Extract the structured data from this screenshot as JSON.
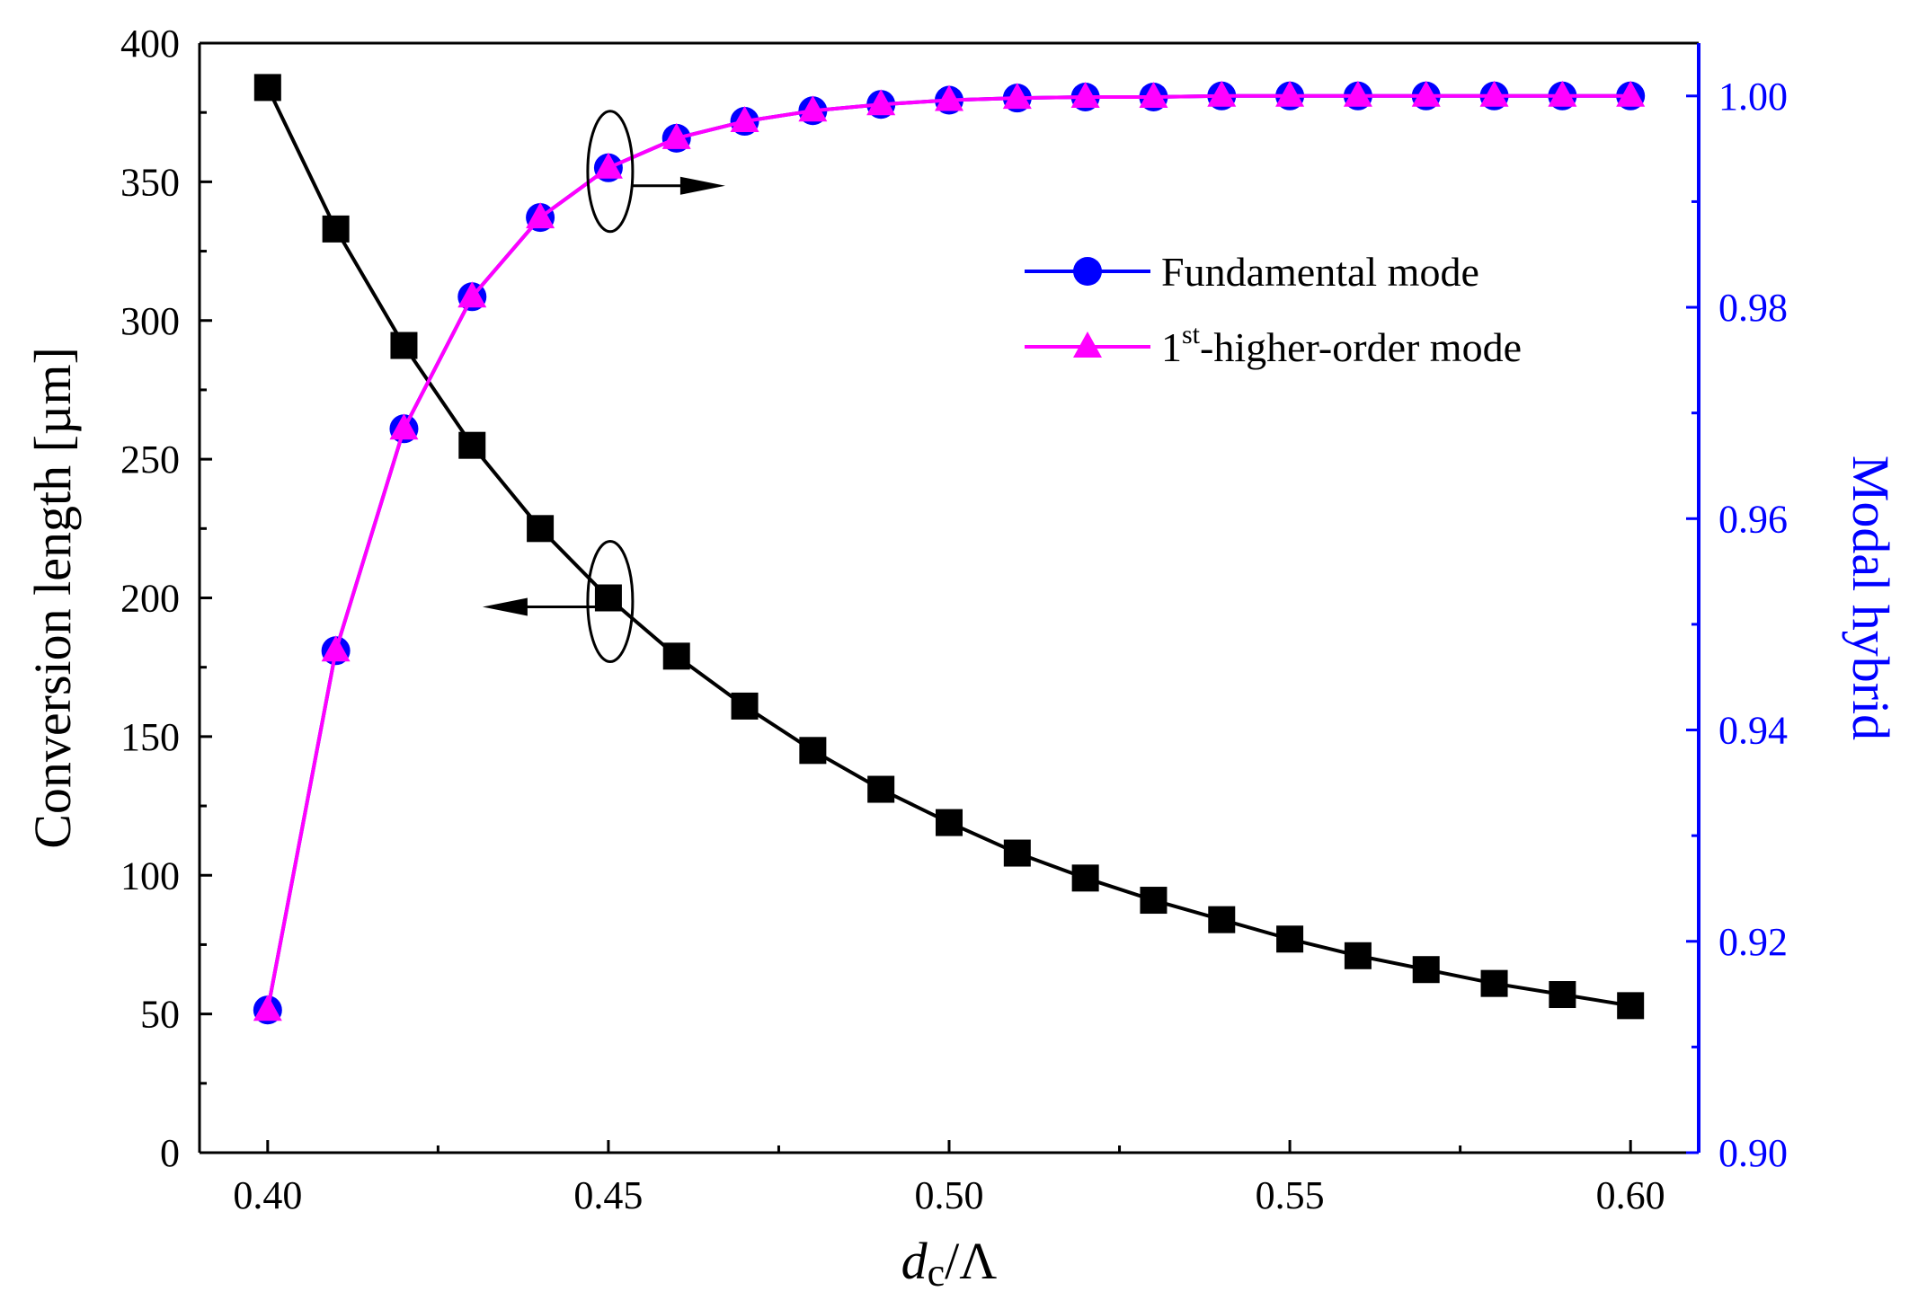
{
  "chart_data": {
    "type": "line",
    "x": [
      0.4,
      0.41,
      0.42,
      0.43,
      0.44,
      0.45,
      0.46,
      0.47,
      0.48,
      0.49,
      0.5,
      0.51,
      0.52,
      0.53,
      0.54,
      0.55,
      0.56,
      0.57,
      0.58,
      0.59,
      0.6
    ],
    "xlabel_main": "d",
    "xlabel_sub": "c",
    "xlabel_rest": "/Λ",
    "xlim": [
      0.39,
      0.61
    ],
    "xticks": [
      0.4,
      0.45,
      0.5,
      0.55,
      0.6
    ],
    "xtick_labels": [
      "0.40",
      "0.45",
      "0.50",
      "0.55",
      "0.60"
    ],
    "left_axis": {
      "label": "Conversion length [µm]",
      "ylim": [
        0,
        400
      ],
      "ticks": [
        0,
        50,
        100,
        150,
        200,
        250,
        300,
        350,
        400
      ],
      "tick_labels": [
        "0",
        "50",
        "100",
        "150",
        "200",
        "250",
        "300",
        "350",
        "400"
      ],
      "color": "#000000"
    },
    "right_axis": {
      "label": "Modal hybrid",
      "ylim": [
        0.9,
        1.005
      ],
      "ticks": [
        0.9,
        0.92,
        0.94,
        0.96,
        0.98,
        1.0
      ],
      "tick_labels": [
        "0.90",
        "0.92",
        "0.94",
        "0.96",
        "0.98",
        "1.00"
      ],
      "color": "#0000ff"
    },
    "series": [
      {
        "name": "Conversion length",
        "axis": "left",
        "marker": "square",
        "color": "#000000",
        "values": [
          384,
          333,
          291,
          255,
          225,
          200,
          179,
          161,
          145,
          131,
          119,
          108,
          99,
          91,
          84,
          77,
          71,
          66,
          61,
          57,
          53
        ]
      },
      {
        "name": "Fundamental mode",
        "axis": "right",
        "marker": "circle",
        "color": "#0000ff",
        "values": [
          0.9135,
          0.9475,
          0.9685,
          0.981,
          0.9885,
          0.9932,
          0.996,
          0.9976,
          0.9986,
          0.9992,
          0.9996,
          0.9998,
          0.9999,
          0.9999,
          1.0,
          1.0,
          1.0,
          1.0,
          1.0,
          1.0,
          1.0
        ]
      },
      {
        "name": "1st-higher-order mode",
        "axis": "right",
        "marker": "triangle",
        "color": "#ff00ff",
        "values": [
          0.9135,
          0.9475,
          0.9685,
          0.981,
          0.9885,
          0.9932,
          0.996,
          0.9976,
          0.9986,
          0.9992,
          0.9996,
          0.9998,
          0.9999,
          0.9999,
          1.0,
          1.0,
          1.0,
          1.0,
          1.0,
          1.0,
          1.0
        ]
      }
    ],
    "legend": {
      "placement": "top-right",
      "entries": [
        {
          "label": "Fundamental mode",
          "marker": "circle",
          "color": "#0000ff",
          "line": "#0000ff"
        },
        {
          "label_main": "1",
          "label_sup": "st",
          "label_rest": "-higher-order mode",
          "marker": "triangle",
          "color": "#ff00ff",
          "line": "#ff00ff"
        }
      ]
    },
    "annotations": [
      {
        "name": "left-axis-pointer",
        "target_series": "Conversion length",
        "at_x": 0.45,
        "direction": "left"
      },
      {
        "name": "right-axis-pointer",
        "target_series": "Fundamental mode",
        "at_x": 0.45,
        "direction": "right"
      }
    ]
  }
}
